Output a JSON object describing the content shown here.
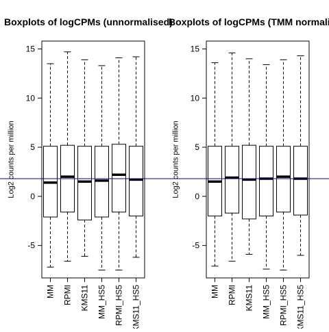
{
  "chart_data": [
    {
      "type": "boxplot",
      "title": "Boxplots of logCPMs (unnormalised)",
      "ylabel": "Log2 counts per million",
      "xlabel": "",
      "categories": [
        "MM",
        "RPMI",
        "KMS11",
        "MM_HS5",
        "RPMI_HS5",
        "KMS11_HS5"
      ],
      "ylim": [
        -8.3,
        15.8
      ],
      "yticks": [
        -5,
        0,
        5,
        10,
        15
      ],
      "median_line": 1.8,
      "median_line_color": "#00008b",
      "boxes": [
        {
          "whisker_low": -7.2,
          "q1": -2.1,
          "median": 1.4,
          "q3": 5.1,
          "whisker_high": 13.5
        },
        {
          "whisker_low": -6.6,
          "q1": -1.6,
          "median": 2.0,
          "q3": 5.2,
          "whisker_high": 14.7
        },
        {
          "whisker_low": -6.1,
          "q1": -2.4,
          "median": 1.5,
          "q3": 5.1,
          "whisker_high": 13.9
        },
        {
          "whisker_low": -7.5,
          "q1": -2.1,
          "median": 1.6,
          "q3": 5.1,
          "whisker_high": 13.3
        },
        {
          "whisker_low": -7.5,
          "q1": -1.6,
          "median": 2.2,
          "q3": 5.3,
          "whisker_high": 14.1
        },
        {
          "whisker_low": -6.2,
          "q1": -2.0,
          "median": 1.7,
          "q3": 5.1,
          "whisker_high": 14.2
        }
      ]
    },
    {
      "type": "boxplot",
      "title": "Boxplots of logCPMs (TMM normalised)",
      "ylabel": "Log2 counts per million",
      "xlabel": "",
      "categories": [
        "MM",
        "RPMI",
        "KMS11",
        "MM_HS5",
        "RPMI_HS5",
        "KMS11_HS5"
      ],
      "ylim": [
        -8.3,
        15.8
      ],
      "yticks": [
        -5,
        0,
        5,
        10,
        15
      ],
      "median_line": 1.8,
      "median_line_color": "#00008b",
      "boxes": [
        {
          "whisker_low": -7.1,
          "q1": -2.0,
          "median": 1.5,
          "q3": 5.1,
          "whisker_high": 13.6
        },
        {
          "whisker_low": -6.6,
          "q1": -1.7,
          "median": 1.9,
          "q3": 5.1,
          "whisker_high": 14.6
        },
        {
          "whisker_low": -5.9,
          "q1": -2.3,
          "median": 1.7,
          "q3": 5.2,
          "whisker_high": 14.0
        },
        {
          "whisker_low": -7.4,
          "q1": -2.0,
          "median": 1.8,
          "q3": 5.1,
          "whisker_high": 13.4
        },
        {
          "whisker_low": -7.5,
          "q1": -1.6,
          "median": 2.0,
          "q3": 5.1,
          "whisker_high": 13.9
        },
        {
          "whisker_low": -6.0,
          "q1": -1.9,
          "median": 1.8,
          "q3": 5.1,
          "whisker_high": 14.3
        }
      ]
    }
  ]
}
